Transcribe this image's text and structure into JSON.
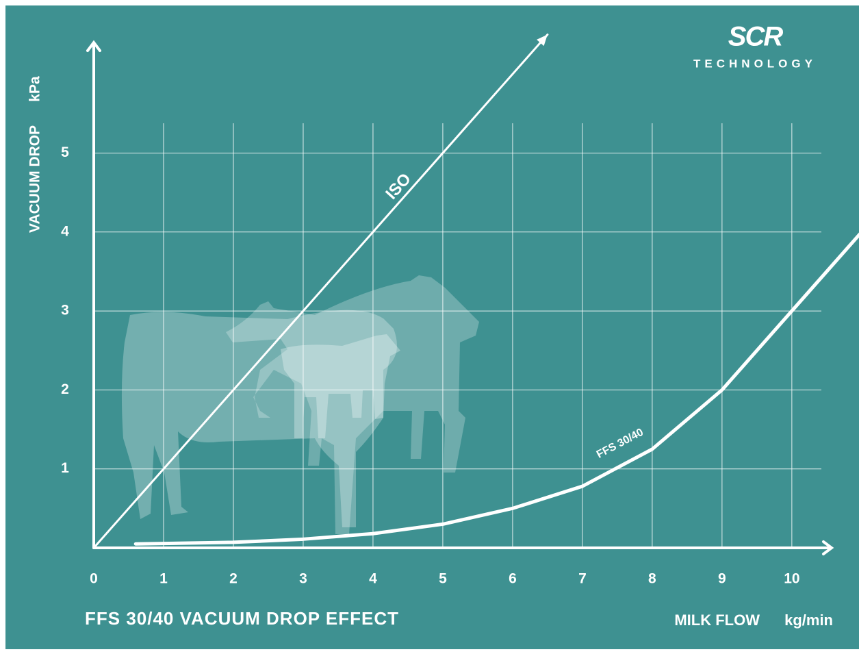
{
  "chart_data": {
    "type": "line",
    "title": "FFS 30/40 VACUUM DROP EFFECT",
    "x_label": "MILK FLOW",
    "x_unit": "kg/min",
    "y_label": "VACUUM DROP",
    "y_unit": "kPa",
    "logo": {
      "mark": "SCR",
      "text": "TECHNOLOGY"
    },
    "xlim": [
      0,
      10.57
    ],
    "ylim": [
      0,
      6.4
    ],
    "xticks": [
      0,
      1,
      2,
      3,
      4,
      5,
      6,
      7,
      8,
      9,
      10
    ],
    "yticks": [
      1,
      2,
      3,
      4,
      5
    ],
    "grid": true,
    "series": [
      {
        "name": "ISO",
        "color": "#ffffff",
        "x": [
          0,
          6.5
        ],
        "values": [
          0,
          6.5
        ],
        "arrow": true
      },
      {
        "name": "FFS 30/40",
        "color": "#ffffff",
        "x": [
          0.6,
          2,
          3,
          4,
          5,
          6,
          7,
          8,
          9,
          10,
          11.1
        ],
        "values": [
          0.05,
          0.07,
          0.11,
          0.18,
          0.3,
          0.5,
          0.78,
          1.25,
          2.0,
          3.0,
          4.1
        ],
        "arrow": false
      }
    ]
  }
}
